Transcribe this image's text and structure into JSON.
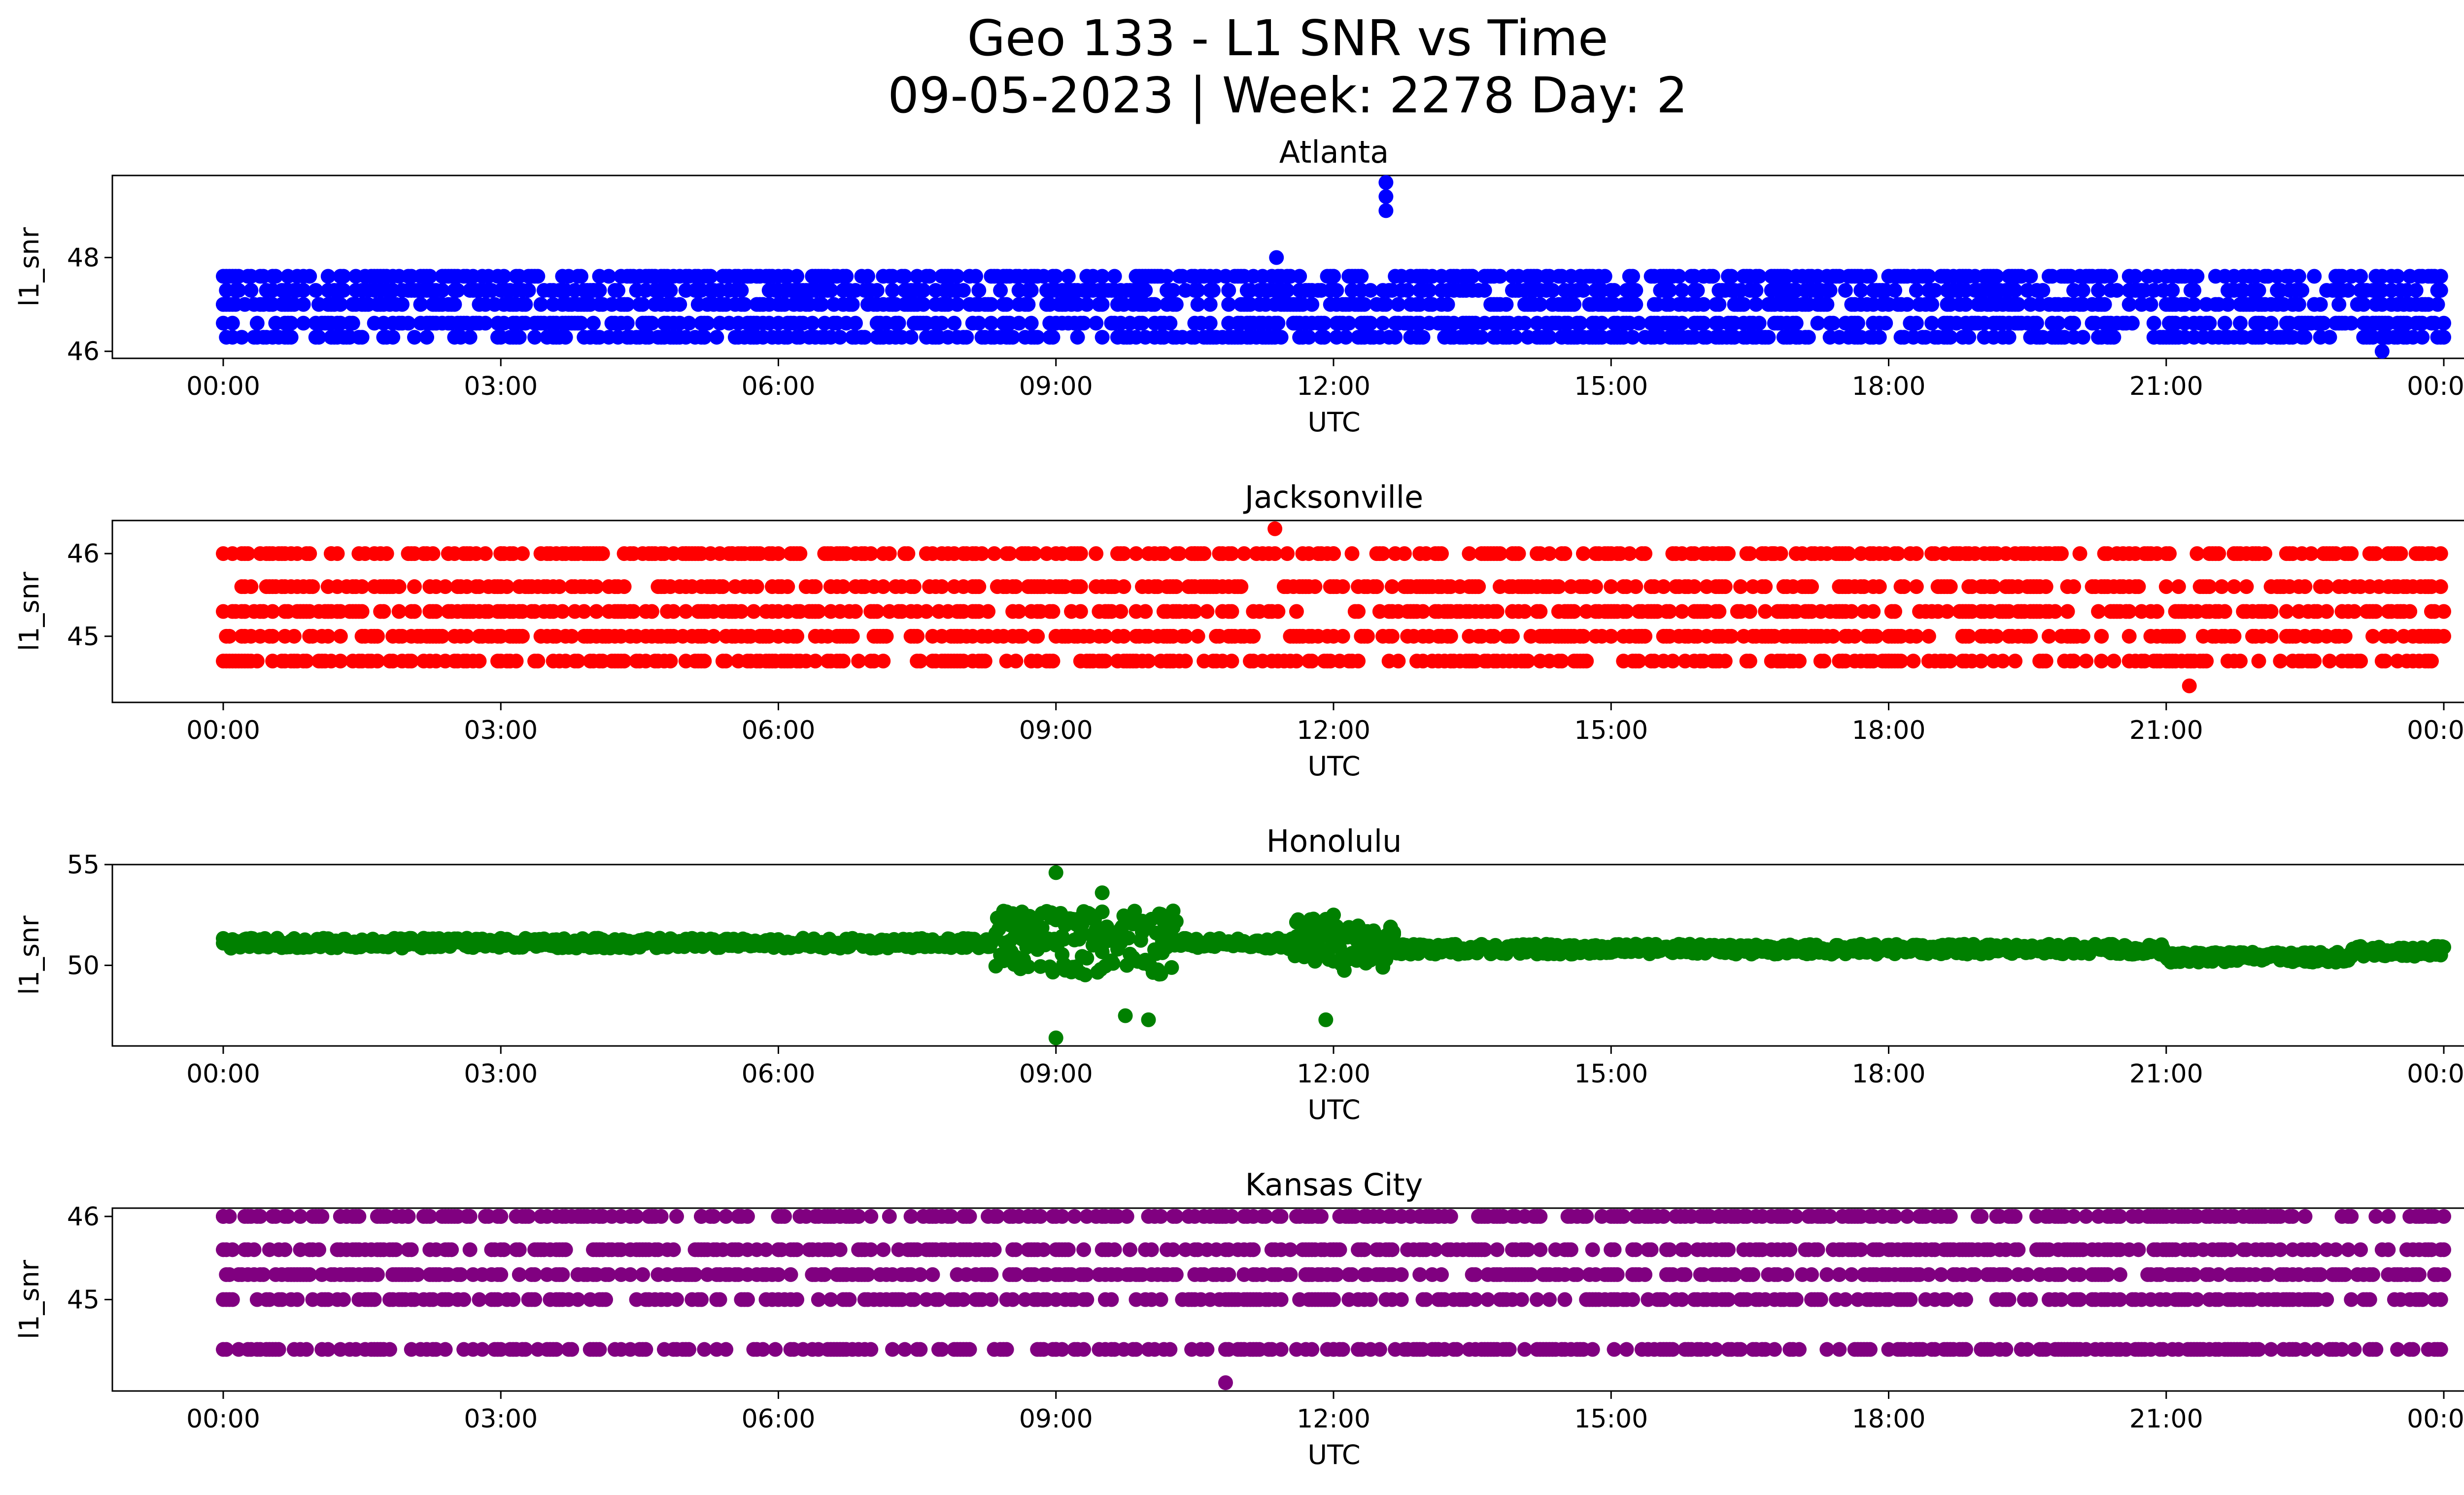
{
  "figure": {
    "title_line1": "Geo 133 - L1 SNR vs Time",
    "title_line2": "09-05-2023 | Week: 2278 Day: 2"
  },
  "chart_data": [
    {
      "type": "scatter",
      "title": "Atlanta",
      "xlabel": "UTC",
      "ylabel": "l1_snr",
      "color": "#0000ff",
      "xlim": [
        "2023-09-05T00:00",
        "2023-09-06T00:00"
      ],
      "ylim": [
        45.85,
        49.75
      ],
      "xticks": [
        "00:00",
        "03:00",
        "06:00",
        "09:00",
        "12:00",
        "15:00",
        "18:00",
        "21:00",
        "00:00"
      ],
      "yticks": [
        46,
        48
      ],
      "levels": [
        46.3,
        46.6,
        47.0,
        47.3,
        47.6
      ],
      "series": [
        {
          "points": [
            [
              "00:00",
              47.0
            ],
            [
              "00:30",
              47.0
            ],
            [
              "01:00",
              47.3
            ],
            [
              "02:00",
              47.3
            ],
            [
              "03:00",
              47.3
            ],
            [
              "04:00",
              47.3
            ],
            [
              "05:00",
              47.3
            ],
            [
              "06:00",
              47.3
            ],
            [
              "07:00",
              47.3
            ],
            [
              "08:00",
              47.3
            ],
            [
              "08:30",
              47.6
            ],
            [
              "09:00",
              47.6
            ],
            [
              "10:00",
              47.6
            ],
            [
              "10:30",
              47.6
            ],
            [
              "11:00",
              47.6
            ],
            [
              "11:23",
              48.0
            ],
            [
              "12:00",
              47.6
            ],
            [
              "12:34",
              49.6
            ],
            [
              "12:34",
              49.3
            ],
            [
              "12:34",
              49.0
            ],
            [
              "13:00",
              47.6
            ],
            [
              "13:30",
              47.6
            ],
            [
              "14:00",
              47.3
            ],
            [
              "14:30",
              47.3
            ],
            [
              "15:00",
              47.0
            ],
            [
              "16:00",
              47.0
            ],
            [
              "17:00",
              47.3
            ],
            [
              "18:00",
              47.0
            ],
            [
              "18:30",
              47.3
            ],
            [
              "19:00",
              47.0
            ],
            [
              "19:30",
              47.3
            ],
            [
              "20:00",
              47.0
            ],
            [
              "21:00",
              47.0
            ],
            [
              "22:00",
              47.0
            ],
            [
              "23:20",
              47.6
            ],
            [
              "23:20",
              46.3
            ],
            [
              "23:20",
              46.0
            ],
            [
              "00:00",
              46.6
            ],
            [
              "00:00",
              46.3
            ],
            [
              "06:00",
              46.6
            ],
            [
              "08:30",
              46.6
            ],
            [
              "16:15",
              46.3
            ],
            [
              "17:00",
              46.3
            ],
            [
              "17:40",
              46.3
            ],
            [
              "21:40",
              46.3
            ],
            [
              "22:20",
              46.3
            ]
          ]
        }
      ]
    },
    {
      "type": "scatter",
      "title": "Jacksonville",
      "xlabel": "UTC",
      "ylabel": "l1_snr",
      "color": "#ff0000",
      "xlim": [
        "2023-09-05T00:00",
        "2023-09-06T00:00"
      ],
      "ylim": [
        44.2,
        46.4
      ],
      "xticks": [
        "00:00",
        "03:00",
        "06:00",
        "09:00",
        "12:00",
        "15:00",
        "18:00",
        "21:00",
        "00:00"
      ],
      "yticks": [
        45,
        46
      ],
      "levels": [
        44.7,
        45.0,
        45.3,
        45.6,
        46.0
      ],
      "series": [
        {
          "points": [
            [
              "00:00",
              45.3
            ],
            [
              "00:00",
              45.0
            ],
            [
              "00:30",
              45.6
            ],
            [
              "01:10",
              46.0
            ],
            [
              "02:00",
              46.0
            ],
            [
              "03:00",
              46.0
            ],
            [
              "04:00",
              46.0
            ],
            [
              "05:00",
              46.0
            ],
            [
              "05:30",
              46.0
            ],
            [
              "06:00",
              45.0
            ],
            [
              "08:30",
              46.0
            ],
            [
              "09:00",
              45.0
            ],
            [
              "10:30",
              46.0
            ],
            [
              "11:22",
              46.3
            ],
            [
              "12:00",
              46.0
            ],
            [
              "13:00",
              46.0
            ],
            [
              "14:00",
              46.0
            ],
            [
              "14:00",
              45.3
            ],
            [
              "15:00",
              45.0
            ],
            [
              "16:15",
              46.0
            ],
            [
              "16:45",
              46.0
            ],
            [
              "17:30",
              44.7
            ],
            [
              "18:00",
              44.7
            ],
            [
              "19:00",
              44.7
            ],
            [
              "20:00",
              44.7
            ],
            [
              "21:00",
              44.7
            ],
            [
              "21:15",
              44.4
            ],
            [
              "22:00",
              44.7
            ],
            [
              "23:00",
              44.7
            ],
            [
              "23:45",
              45.6
            ],
            [
              "23:45",
              45.0
            ],
            [
              "00:00",
              45.3
            ]
          ]
        }
      ]
    },
    {
      "type": "scatter",
      "title": "Honolulu",
      "xlabel": "UTC",
      "ylabel": "l1_snr",
      "color": "#008000",
      "xlim": [
        "2023-09-05T00:00",
        "2023-09-06T00:00"
      ],
      "ylim": [
        46.0,
        55.0
      ],
      "xticks": [
        "00:00",
        "03:00",
        "06:00",
        "09:00",
        "12:00",
        "15:00",
        "18:00",
        "21:00",
        "00:00"
      ],
      "yticks": [
        50,
        55
      ],
      "series": [
        {
          "points": [
            [
              "00:00",
              51.1
            ],
            [
              "01:30",
              51.2
            ],
            [
              "03:00",
              51.1
            ],
            [
              "04:30",
              50.9
            ],
            [
              "06:00",
              51.0
            ],
            [
              "07:30",
              51.1
            ],
            [
              "08:30",
              51.2
            ],
            [
              "09:00",
              54.6
            ],
            [
              "09:00",
              46.4
            ],
            [
              "09:00",
              51.0
            ],
            [
              "09:30",
              53.6
            ],
            [
              "09:45",
              47.5
            ],
            [
              "10:00",
              47.3
            ],
            [
              "10:30",
              51.0
            ],
            [
              "11:00",
              51.0
            ],
            [
              "11:55",
              47.3
            ],
            [
              "12:00",
              52.5
            ],
            [
              "12:30",
              50.6
            ],
            [
              "13:00",
              50.8
            ],
            [
              "15:00",
              50.7
            ],
            [
              "17:00",
              50.8
            ],
            [
              "18:00",
              51.0
            ],
            [
              "19:00",
              50.8
            ],
            [
              "20:00",
              50.6
            ],
            [
              "21:00",
              50.4
            ],
            [
              "21:30",
              50.2
            ],
            [
              "22:30",
              50.2
            ],
            [
              "23:00",
              50.6
            ],
            [
              "00:00",
              50.9
            ]
          ]
        }
      ]
    },
    {
      "type": "scatter",
      "title": "Kansas City",
      "xlabel": "UTC",
      "ylabel": "l1_snr",
      "color": "#800080",
      "xlim": [
        "2023-09-05T00:00",
        "2023-09-06T00:00"
      ],
      "ylim": [
        43.9,
        46.1
      ],
      "xticks": [
        "00:00",
        "03:00",
        "06:00",
        "09:00",
        "12:00",
        "15:00",
        "18:00",
        "21:00",
        "00:00"
      ],
      "yticks": [
        45,
        46
      ],
      "levels": [
        44.4,
        45.0,
        45.3,
        45.6,
        46.0
      ],
      "series": [
        {
          "points": [
            [
              "00:00",
              46.0
            ],
            [
              "02:00",
              46.0
            ],
            [
              "03:00",
              46.0
            ],
            [
              "04:00",
              46.0
            ],
            [
              "05:10",
              46.0
            ],
            [
              "00:00",
              45.6
            ],
            [
              "06:00",
              45.6
            ],
            [
              "09:00",
              45.6
            ],
            [
              "12:00",
              45.6
            ],
            [
              "15:00",
              45.6
            ],
            [
              "18:00",
              45.6
            ],
            [
              "21:00",
              45.6
            ],
            [
              "00:00",
              45.3
            ],
            [
              "05:10",
              45.0
            ],
            [
              "12:00",
              45.0
            ],
            [
              "15:00",
              45.0
            ],
            [
              "17:00",
              45.0
            ],
            [
              "18:00",
              45.0
            ],
            [
              "21:20",
              45.0
            ],
            [
              "22:30",
              45.0
            ],
            [
              "07:00",
              44.4
            ],
            [
              "08:20",
              44.4
            ],
            [
              "09:00",
              44.4
            ],
            [
              "10:00",
              44.4
            ],
            [
              "11:00",
              44.4
            ],
            [
              "10:50",
              44.0
            ],
            [
              "12:00",
              44.4
            ],
            [
              "13:40",
              44.4
            ],
            [
              "15:45",
              46.0
            ],
            [
              "17:00",
              46.0
            ],
            [
              "18:20",
              46.0
            ],
            [
              "19:00",
              46.0
            ],
            [
              "20:00",
              46.0
            ],
            [
              "21:00",
              46.0
            ],
            [
              "22:30",
              46.0
            ],
            [
              "23:00",
              46.0
            ],
            [
              "00:00",
              46.0
            ]
          ]
        }
      ]
    }
  ]
}
